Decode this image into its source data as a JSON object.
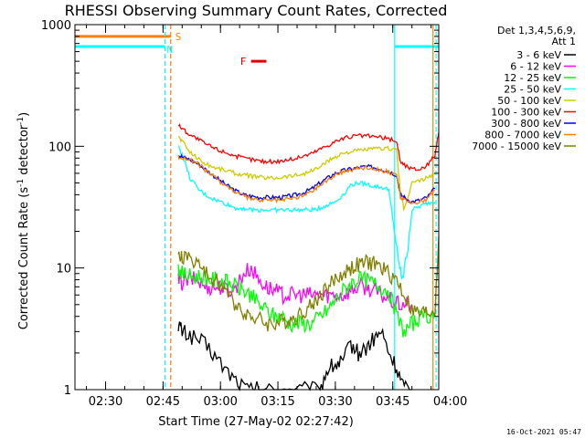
{
  "chart_data": {
    "type": "line",
    "title": "RHESSI Observing Summary Count Rates, Corrected",
    "xlabel": "Start Time (27-May-02 02:27:42)",
    "ylabel_main": "Corrected Count Rate (s",
    "ylabel_sup1": "-1",
    "ylabel_mid": " detector",
    "ylabel_sup2": "-1",
    "ylabel_end": ")",
    "yscale": "log",
    "ylim": [
      1,
      1000
    ],
    "xlim_minutes": [
      22,
      117
    ],
    "x_ticks": [
      {
        "m": 30,
        "label": "02:30"
      },
      {
        "m": 45,
        "label": "02:45"
      },
      {
        "m": 60,
        "label": "03:00"
      },
      {
        "m": 75,
        "label": "03:15"
      },
      {
        "m": 90,
        "label": "03:30"
      },
      {
        "m": 105,
        "label": "03:45"
      },
      {
        "m": 120,
        "label": "04:00"
      }
    ],
    "y_ticks": [
      {
        "v": 1,
        "label": "1"
      },
      {
        "v": 10,
        "label": "10"
      },
      {
        "v": 100,
        "label": "100"
      },
      {
        "v": 1000,
        "label": "1000"
      }
    ],
    "legend_header": [
      "Det 1,3,4,5,6,9,",
      "Att 1"
    ],
    "legend_position": "right",
    "series": [
      {
        "name": "3 - 6 keV",
        "color": "#000000",
        "x": [
          49,
          50,
          52,
          55,
          58,
          61,
          64,
          67,
          70,
          74,
          78,
          82,
          86,
          88,
          90,
          92,
          94,
          96,
          98,
          100,
          102,
          104,
          106,
          108,
          110
        ],
        "y": [
          3.5,
          3,
          2.8,
          2.5,
          2,
          1.5,
          1.2,
          1,
          1,
          1,
          1,
          1,
          1,
          1.5,
          1.6,
          1.7,
          2.4,
          2,
          2.2,
          2.6,
          3,
          2,
          1.5,
          1,
          1
        ]
      },
      {
        "name": "6 - 12 keV",
        "color": "#ff00ff",
        "x": [
          49,
          50,
          52,
          54,
          56,
          58,
          60,
          62,
          64,
          66,
          68,
          70,
          72,
          74,
          76,
          78,
          80,
          82,
          84,
          86,
          88,
          90,
          92,
          94,
          96,
          98,
          100,
          102,
          104,
          106,
          108,
          110
        ],
        "y": [
          8,
          7.5,
          8,
          8,
          7,
          7,
          7,
          6.5,
          7,
          9,
          10,
          8,
          7,
          6.5,
          6,
          6,
          6,
          6,
          6,
          6,
          6,
          6,
          6,
          6.5,
          7,
          7,
          6.5,
          6,
          5.5,
          5,
          5,
          5
        ]
      },
      {
        "name": "12 - 25 keV",
        "color": "#00ff00",
        "x": [
          49,
          50,
          52,
          54,
          56,
          58,
          60,
          62,
          64,
          66,
          68,
          70,
          72,
          74,
          76,
          78,
          80,
          82,
          84,
          86,
          88,
          90,
          92,
          94,
          96,
          98,
          100,
          102,
          104,
          106,
          108,
          110,
          112,
          114,
          116
        ],
        "y": [
          10,
          9,
          8.5,
          8.5,
          8.5,
          8,
          8,
          7.5,
          7,
          6.5,
          6,
          5,
          4.5,
          4,
          4,
          3.5,
          3.5,
          3.5,
          3.5,
          4,
          4.5,
          5.5,
          6.5,
          7.5,
          8,
          8,
          7.5,
          7,
          6.5,
          4,
          3,
          3.5,
          3.8,
          4,
          4.2
        ]
      },
      {
        "name": "25 - 50 keV",
        "color": "#00ffff",
        "x": [
          49,
          50,
          52,
          54,
          56,
          58,
          60,
          62,
          64,
          66,
          68,
          70,
          72,
          74,
          76,
          78,
          80,
          82,
          84,
          86,
          88,
          90,
          92,
          94,
          96,
          98,
          100,
          102,
          104,
          105,
          106,
          107,
          108,
          110,
          112,
          114,
          116
        ],
        "y": [
          100,
          85,
          55,
          45,
          40,
          37,
          35,
          33,
          31,
          31,
          30,
          30,
          30,
          30,
          30,
          30,
          30,
          30,
          30,
          31,
          33,
          35,
          40,
          48,
          50,
          49,
          47,
          46,
          44,
          25,
          15,
          9,
          9,
          30,
          32,
          34,
          35
        ]
      },
      {
        "name": "50 - 100 keV",
        "color": "#cccc00",
        "x": [
          49,
          50,
          52,
          54,
          56,
          58,
          60,
          62,
          64,
          66,
          68,
          70,
          72,
          74,
          76,
          78,
          80,
          82,
          84,
          86,
          88,
          90,
          92,
          94,
          96,
          98,
          100,
          102,
          104,
          106,
          107,
          108,
          110,
          112,
          114,
          116
        ],
        "y": [
          120,
          110,
          90,
          80,
          72,
          68,
          65,
          63,
          60,
          58,
          57,
          56,
          55,
          55,
          56,
          57,
          58,
          60,
          63,
          68,
          75,
          82,
          88,
          90,
          92,
          94,
          95,
          96,
          96,
          95,
          40,
          30,
          50,
          52,
          55,
          60
        ]
      },
      {
        "name": "100 - 300 keV",
        "color": "#ff0000",
        "x": [
          49,
          50,
          52,
          54,
          56,
          58,
          60,
          62,
          64,
          66,
          68,
          70,
          72,
          74,
          76,
          78,
          80,
          82,
          84,
          86,
          88,
          90,
          92,
          94,
          96,
          98,
          100,
          102,
          104,
          106,
          107,
          108,
          110,
          112,
          114,
          116,
          117
        ],
        "y": [
          150,
          140,
          125,
          115,
          105,
          98,
          92,
          88,
          83,
          80,
          78,
          76,
          75,
          75,
          76,
          78,
          80,
          84,
          88,
          95,
          102,
          110,
          116,
          120,
          122,
          122,
          120,
          118,
          115,
          110,
          75,
          70,
          65,
          65,
          70,
          85,
          130
        ]
      },
      {
        "name": "300 - 800 keV",
        "color": "#0000ff",
        "x": [
          49,
          50,
          52,
          54,
          56,
          58,
          60,
          62,
          64,
          66,
          68,
          70,
          72,
          74,
          76,
          78,
          80,
          82,
          84,
          86,
          88,
          90,
          92,
          94,
          96,
          98,
          100,
          102,
          104,
          106,
          107,
          108,
          110,
          112,
          114,
          116
        ],
        "y": [
          85,
          82,
          78,
          72,
          65,
          58,
          52,
          47,
          43,
          40,
          39,
          38,
          38,
          38,
          38,
          39,
          40,
          42,
          45,
          50,
          55,
          60,
          63,
          65,
          67,
          68,
          67,
          65,
          62,
          58,
          40,
          38,
          35,
          36,
          38,
          45
        ]
      },
      {
        "name": "800 - 7000 keV",
        "color": "#ff7f00",
        "x": [
          49,
          50,
          52,
          54,
          56,
          58,
          60,
          62,
          64,
          66,
          68,
          70,
          72,
          74,
          76,
          78,
          80,
          82,
          84,
          86,
          88,
          90,
          92,
          94,
          96,
          98,
          100,
          102,
          104,
          106,
          107,
          108,
          110,
          112,
          114,
          116
        ],
        "y": [
          82,
          80,
          78,
          72,
          64,
          57,
          51,
          46,
          42,
          39,
          37,
          36,
          36,
          36,
          36,
          37,
          38,
          40,
          43,
          48,
          53,
          58,
          62,
          64,
          66,
          67,
          66,
          64,
          61,
          57,
          38,
          36,
          34,
          35,
          37,
          44
        ]
      },
      {
        "name": "7000 - 15000 keV",
        "color": "#808000",
        "x": [
          49,
          50,
          52,
          54,
          56,
          58,
          60,
          62,
          64,
          66,
          68,
          70,
          72,
          74,
          76,
          78,
          80,
          82,
          84,
          86,
          88,
          90,
          92,
          94,
          96,
          98,
          100,
          102,
          104,
          106,
          108,
          110,
          112,
          114,
          116,
          117
        ],
        "y": [
          12,
          12.5,
          12,
          11,
          9,
          8,
          7.5,
          6,
          5,
          4.5,
          4,
          3.8,
          3.5,
          3.5,
          3.6,
          3.8,
          4,
          4.5,
          5,
          6,
          7,
          8,
          9,
          10,
          10.5,
          11,
          11,
          10,
          9,
          8,
          6,
          4.5,
          4.2,
          4.3,
          4.5,
          18
        ]
      }
    ],
    "annotations": {
      "S": {
        "label": "S",
        "color": "#ff7f00"
      },
      "N": {
        "label": "N",
        "color": "#00ffff"
      },
      "F": {
        "label": "F",
        "color": "#dd0000"
      }
    },
    "state_bars": [
      {
        "name": "orange-bar",
        "color": "#ff7f00",
        "x0": 22,
        "x1": 47,
        "y": 800
      },
      {
        "name": "cyan-bar",
        "color": "#00ffff",
        "x0": 22,
        "x1": 45.5,
        "y": 660
      },
      {
        "name": "cyan-bar-right",
        "color": "#00ffff",
        "x0": 105.5,
        "x1": 117,
        "y": 660
      },
      {
        "name": "flare-bar",
        "color": "#dd0000",
        "x0": 68,
        "x1": 72,
        "y": 500
      }
    ],
    "vertical_lines": [
      {
        "name": "cyan-line",
        "color": "#00ffff",
        "x": 45.5,
        "dashed": true
      },
      {
        "name": "orange-line",
        "color": "#ff7f00",
        "x": 47,
        "dashed": true
      },
      {
        "name": "cyan-line",
        "color": "#00ffff",
        "x": 105.5,
        "dashed": false
      },
      {
        "name": "orange-line",
        "color": "#ff7f00",
        "x": 115.5,
        "dashed": false
      },
      {
        "name": "cyan-line",
        "color": "#00ffff",
        "x": 116.3,
        "dashed": true
      }
    ]
  },
  "footer": {
    "timestamp": "16-Oct-2021 05:47"
  }
}
